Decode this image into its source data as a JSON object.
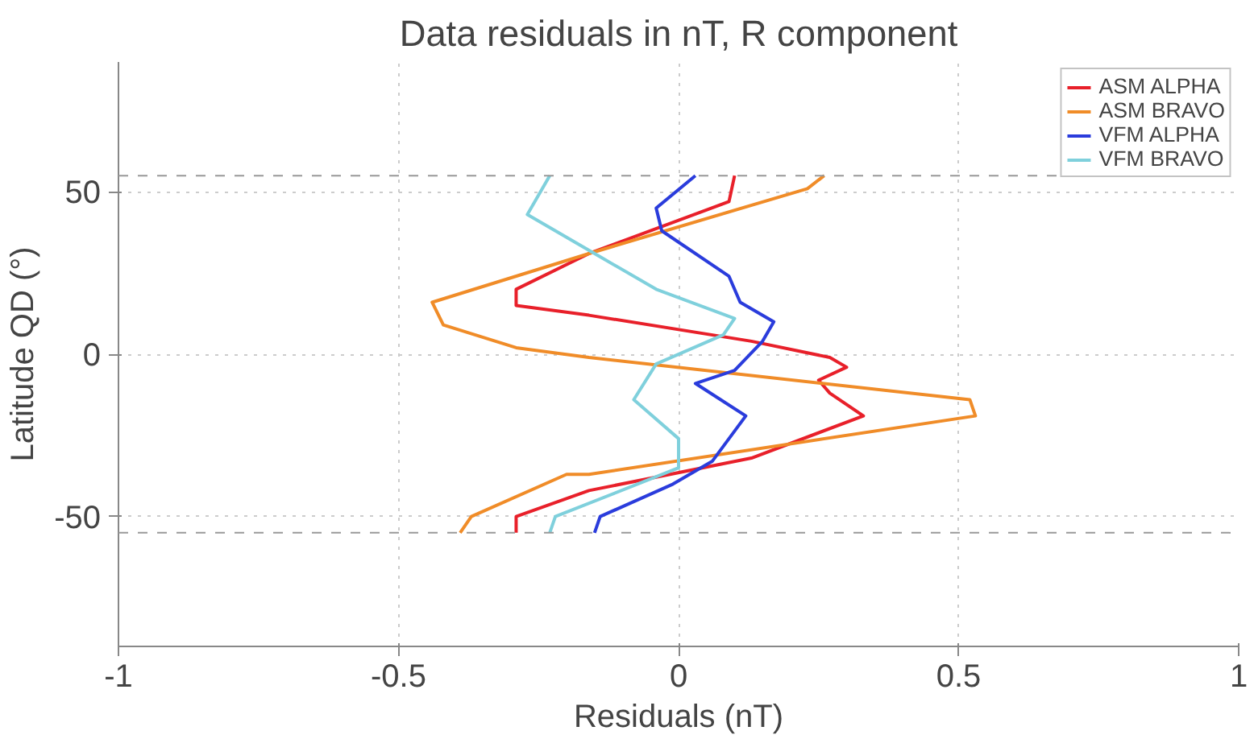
{
  "chart_data": {
    "type": "line",
    "title": "Data residuals in nT, R component",
    "xlabel": "Residuals (nT)",
    "ylabel": "Latitude QD (°)",
    "xlim": [
      -1,
      1
    ],
    "ylim": [
      -90,
      90
    ],
    "xticks": [
      -1,
      -0.5,
      0,
      0.5,
      1
    ],
    "yticks": [
      -50,
      0,
      50
    ],
    "grid": true,
    "legend": "top right",
    "line_style": "solid",
    "ref_lines": [
      {
        "axis": "y",
        "value": 55,
        "color": "#999999",
        "line_style": "dashed"
      },
      {
        "axis": "y",
        "value": -55,
        "color": "#999999",
        "line_style": "dashed"
      }
    ],
    "series": [
      {
        "name": "ASM ALPHA",
        "color": "#e8202a",
        "x": [
          0.1,
          0.09,
          -0.16,
          -0.29,
          -0.29,
          -0.16,
          0.13,
          0.27,
          0.3,
          0.25,
          0.27,
          0.33,
          0.13,
          -0.16,
          -0.29,
          -0.29
        ],
        "values": [
          55,
          47,
          31,
          20,
          15,
          12,
          4,
          -1,
          -4,
          -8,
          -12,
          -19,
          -32,
          -42,
          -50,
          -55
        ]
      },
      {
        "name": "ASM BRAVO",
        "color": "#f08c28",
        "x": [
          0.26,
          0.23,
          -0.16,
          -0.44,
          -0.42,
          -0.29,
          -0.16,
          0.52,
          0.53,
          -0.16,
          -0.2,
          -0.37,
          -0.39
        ],
        "values": [
          55,
          51,
          31,
          16,
          9,
          2,
          -1,
          -14,
          -19,
          -37,
          -37,
          -50,
          -55
        ]
      },
      {
        "name": "VFM ALPHA",
        "color": "#2a3cdc",
        "x": [
          0.03,
          -0.04,
          -0.03,
          0.09,
          0.11,
          0.17,
          0.15,
          0.1,
          0.03,
          0.12,
          0.06,
          -0.01,
          -0.14,
          -0.15
        ],
        "values": [
          55,
          45,
          38,
          24,
          16,
          10,
          4,
          -5,
          -9,
          -19,
          -33,
          -40,
          -50,
          -55
        ]
      },
      {
        "name": "VFM BRAVO",
        "color": "#7fd0dc",
        "x": [
          -0.23,
          -0.27,
          -0.14,
          -0.04,
          0.1,
          0.08,
          -0.04,
          -0.08,
          0.0,
          0.0,
          -0.22,
          -0.23
        ],
        "values": [
          55,
          43,
          30,
          20,
          11,
          6,
          -3,
          -14,
          -26,
          -35,
          -50,
          -55
        ]
      }
    ]
  }
}
